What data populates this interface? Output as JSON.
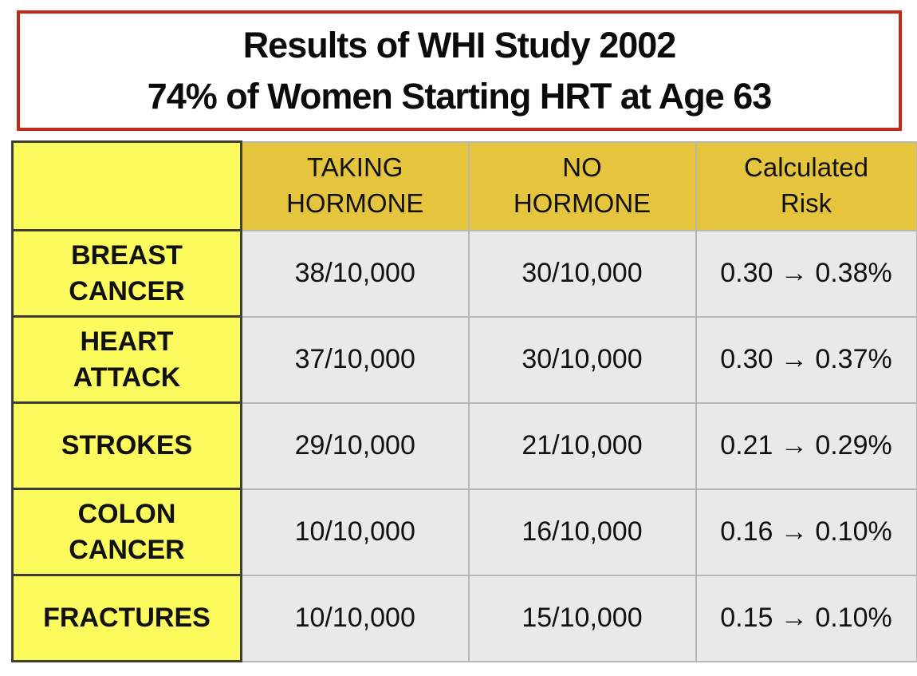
{
  "title": {
    "line1": "Results of WHI Study 2002",
    "line2": "74% of Women Starting HRT at Age 63"
  },
  "table": {
    "headers": {
      "corner": "",
      "taking": "TAKING HORMONE",
      "no_hormone": "NO HORMONE",
      "risk": "Calculated Risk"
    },
    "rows": [
      {
        "label": "BREAST CANCER",
        "taking": "38/10,000",
        "no_hormone": "30/10,000",
        "risk": "0.30 → 0.38%"
      },
      {
        "label": "HEART ATTACK",
        "taking": "37/10,000",
        "no_hormone": "30/10,000",
        "risk": "0.30 → 0.37%"
      },
      {
        "label": "STROKES",
        "taking": "29/10,000",
        "no_hormone": "21/10,000",
        "risk": "0.21 → 0.29%"
      },
      {
        "label": "COLON CANCER",
        "taking": "10/10,000",
        "no_hormone": "16/10,000",
        "risk": "0.16 → 0.10%"
      },
      {
        "label": "FRACTURES",
        "taking": "10/10,000",
        "no_hormone": "15/10,000",
        "risk": "0.15 → 0.10%"
      }
    ]
  },
  "colors": {
    "title_border": "#c02b1b",
    "header_bg": "#e5c43e",
    "row_label_bg": "#fbfb5e",
    "data_cell_bg": "#e9e9e9",
    "text": "#111111"
  },
  "icons": {
    "arrow_right": "→"
  }
}
